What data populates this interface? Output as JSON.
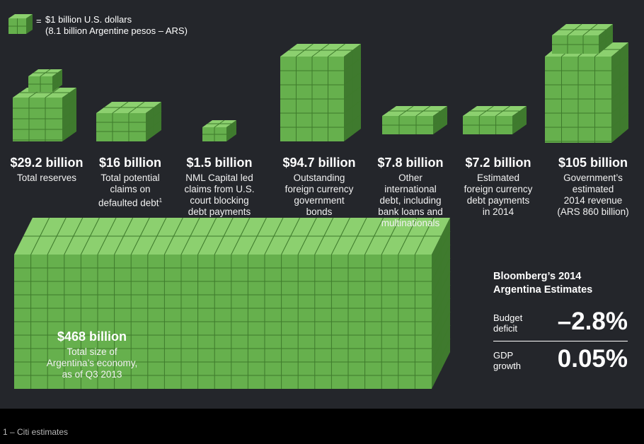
{
  "colors": {
    "background": "#24262b",
    "cube_face": "#66b04d",
    "cube_shade": "#4c8a38",
    "grid_line": "#3e7a2c",
    "text": "#ffffff"
  },
  "legend": {
    "equals": "=",
    "line1": "$1 billion U.S. dollars",
    "line2": "(8.1 billion Argentine pesos – ARS)"
  },
  "items": [
    {
      "amount": "$29.2 billion",
      "desc": [
        "Total reserves"
      ]
    },
    {
      "amount": "$16 billion",
      "desc": [
        "Total potential",
        "claims on",
        "defaulted debt"
      ],
      "sup": "1"
    },
    {
      "amount": "$1.5 billion",
      "desc": [
        "NML Capital led",
        "claims from U.S.",
        "court blocking",
        "debt payments"
      ]
    },
    {
      "amount": "$94.7 billion",
      "desc": [
        "Outstanding",
        "foreign currency",
        "government",
        "bonds"
      ]
    },
    {
      "amount": "$7.8 billion",
      "desc": [
        "Other",
        "international",
        "debt, including",
        "bank loans and",
        "multinationals"
      ]
    },
    {
      "amount": "$7.2 billion",
      "desc": [
        "Estimated",
        "foreign currency",
        "debt payments",
        "in 2014"
      ]
    },
    {
      "amount": "$105 billion",
      "desc": [
        "Government’s",
        "estimated",
        "2014 revenue",
        "(ARS 860 billion)"
      ]
    }
  ],
  "economy": {
    "amount": "$468 billion",
    "desc": [
      "Total size of",
      "Argentina’s economy,",
      "as of Q3 2013"
    ]
  },
  "estimates": {
    "title_line1": "Bloomberg’s 2014",
    "title_line2": "Argentina Estimates",
    "budget_label_1": "Budget",
    "budget_label_2": "deficit",
    "budget_value": "–2.8%",
    "gdp_label_1": "GDP",
    "gdp_label_2": "growth",
    "gdp_value": "0.05%"
  },
  "footnote": "1 – Citi estimates"
}
